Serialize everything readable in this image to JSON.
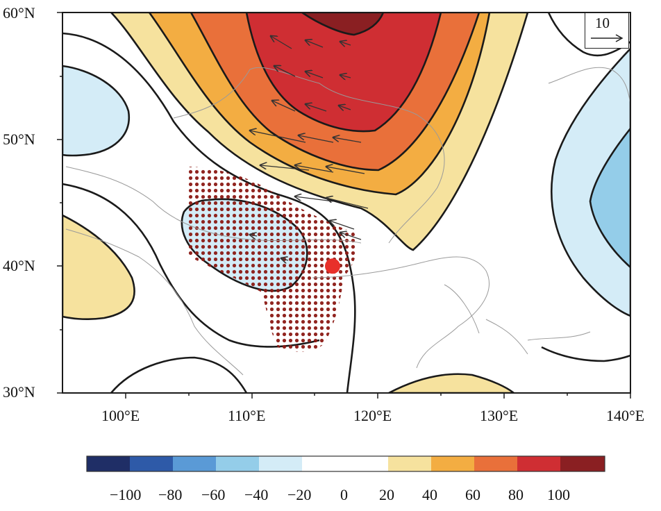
{
  "map": {
    "y_axis_labels": [
      "60°N",
      "50°N",
      "40°N",
      "30°N"
    ],
    "x_axis_labels": [
      "100°E",
      "110°E",
      "120°E",
      "130°E",
      "140°E"
    ],
    "lat_range": [
      30,
      60
    ],
    "lon_range": [
      95,
      140
    ],
    "reference_vector_label": "10",
    "marked_location": {
      "lon": 116.4,
      "lat": 40.0,
      "color": "#e8302a"
    }
  },
  "colorbar": {
    "labels": [
      "−100",
      "−80",
      "−60",
      "−40",
      "−20",
      "0",
      "20",
      "40",
      "60",
      "80",
      "100"
    ],
    "colors": [
      "#1f2e66",
      "#2e5aa8",
      "#5a9ad6",
      "#94cde9",
      "#d4ecf7",
      "#ffffff",
      "#ffffff",
      "#f6e29e",
      "#f3ad42",
      "#e9703a",
      "#cf2e33",
      "#8a1f22"
    ]
  }
}
